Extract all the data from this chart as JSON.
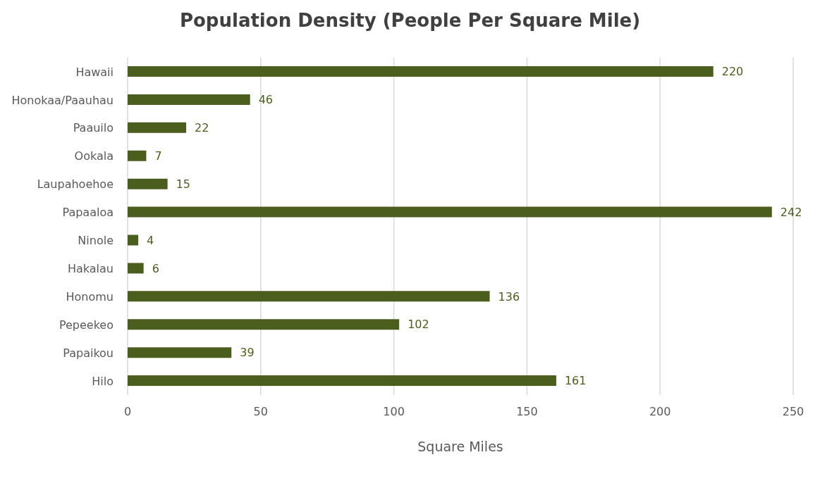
{
  "chart_data": {
    "type": "bar",
    "orientation": "horizontal",
    "title": "Population Density (People Per Square Mile)",
    "xlabel": "Square Miles",
    "categories": [
      "Hawaii",
      "Honokaa/Paauhau",
      "Paauilo",
      "Ookala",
      "Laupahoehoe",
      "Papaaloa",
      "Ninole",
      "Hakalau",
      "Honomu",
      "Pepeekeo",
      "Papaikou",
      "Hilo"
    ],
    "values": [
      220,
      46,
      22,
      7,
      15,
      242,
      4,
      6,
      136,
      102,
      39,
      161
    ],
    "color": "#4b5e1e",
    "xlim": [
      0,
      250
    ],
    "xticks": [
      0,
      50,
      100,
      150,
      200,
      250
    ],
    "grid": "x",
    "data_labels": true,
    "legend": false
  }
}
